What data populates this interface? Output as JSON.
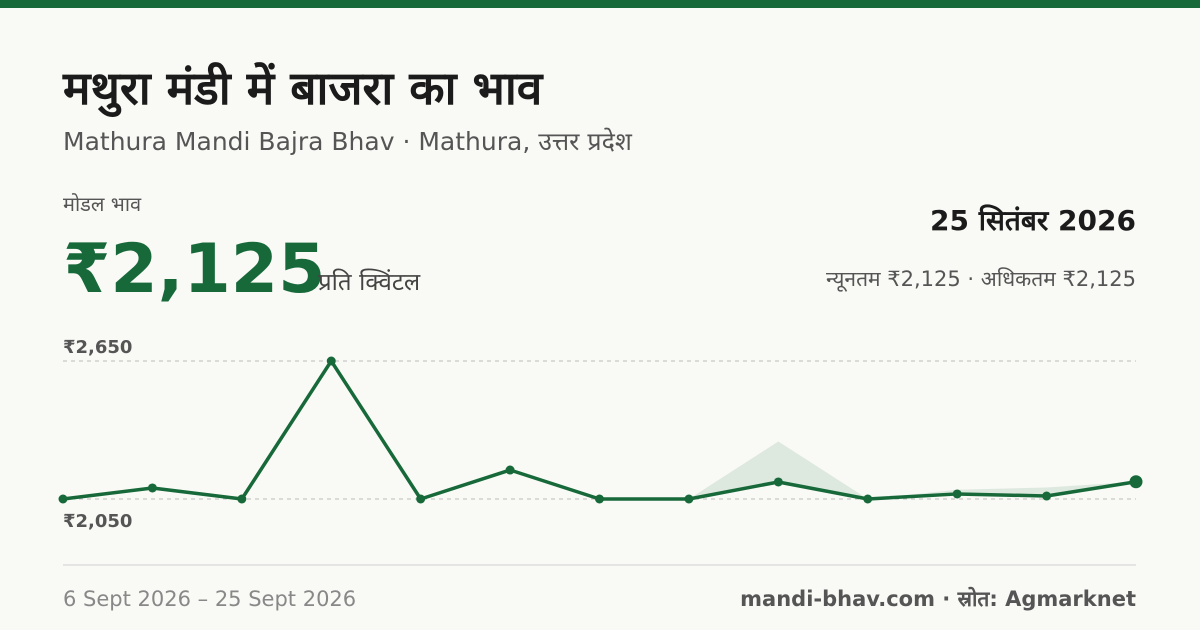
{
  "header": {
    "title": "मथुरा मंडी में बाजरा का भाव",
    "subtitle": "Mathura Mandi Bajra Bhav · Mathura, उत्तर प्रदेश"
  },
  "summary": {
    "label": "मोडल भाव",
    "price": "₹2,125",
    "unit": "प्रति क्विंटल",
    "date": "25 सितंबर 2026",
    "range": "न्यूनतम ₹2,125 · अधिकतम ₹2,125"
  },
  "chart_data": {
    "type": "line",
    "color": "#17693a",
    "band_color": "#dde8df",
    "categories": [
      null,
      null,
      null,
      null,
      null,
      null,
      null,
      null,
      null,
      null,
      null,
      null,
      null
    ],
    "values": [
      2050,
      2098,
      2050,
      2650,
      2050,
      2176,
      2050,
      2050,
      2124,
      2050,
      2072,
      2063,
      2125
    ],
    "min_values": [
      null,
      null,
      null,
      null,
      null,
      null,
      null,
      2050,
      2124,
      2050,
      2072,
      2063,
      2125
    ],
    "max_values": [
      null,
      null,
      null,
      null,
      null,
      null,
      null,
      2050,
      2300,
      2050,
      2090,
      2100,
      2125
    ],
    "ylim": [
      2050,
      2650
    ],
    "yticks": [
      {
        "value": 2650,
        "label": "₹2,650"
      },
      {
        "value": 2050,
        "label": "₹2,050"
      }
    ],
    "grid": true
  },
  "footer": {
    "dates": "6 Sept 2026 – 25 Sept 2026",
    "source": "mandi-bhav.com · स्रोत: Agmarknet"
  }
}
